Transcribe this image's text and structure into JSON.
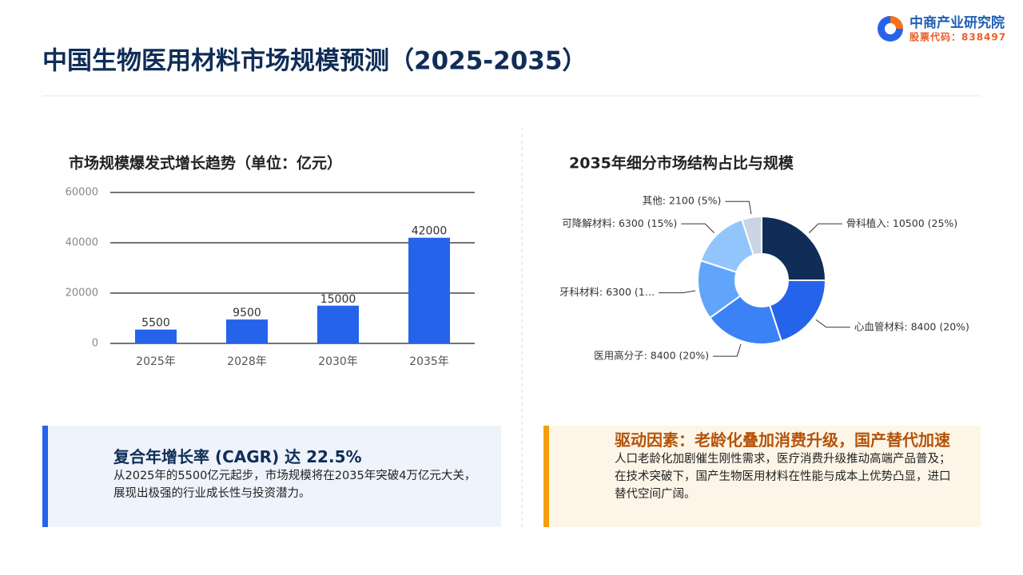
{
  "header": {
    "title": "中国生物医用材料市场规模预测（2025-2035）",
    "logo_name": "中商产业研究院",
    "logo_code": "股票代码：838497"
  },
  "chart_data": [
    {
      "type": "bar",
      "title": "市场规模爆发式增长趋势（单位：亿元）",
      "categories": [
        "2025年",
        "2028年",
        "2030年",
        "2035年"
      ],
      "values": [
        5500,
        9500,
        15000,
        42000
      ],
      "color": "#2563eb",
      "ylim": [
        0,
        60000
      ],
      "yticks": [
        0,
        20000,
        40000,
        60000
      ],
      "grid": true
    },
    {
      "type": "pie",
      "title": "2035年细分市场结构占比与规模",
      "values": [
        10500,
        8400,
        8400,
        6300,
        6300,
        2100
      ],
      "value_labels": [
        "骨科植入: 10500 (25%)",
        "心血管材料: 8400 (20%)",
        "医用高分子: 8400 (20%)",
        "牙科材料: 6300 (1…",
        "可降解材料: 6300 (15%)",
        "其他: 2100 (5%)"
      ],
      "colors": [
        "#0f2d57",
        "#2563eb",
        "#3b82f6",
        "#60a5fa",
        "#93c5fd",
        "#cbd5e1"
      ],
      "donut": true
    }
  ],
  "cards": [
    {
      "title": "复合年增长率 (CAGR) 达 22.5%",
      "text": "从2025年的5500亿元起步，市场规模将在2035年突破4万亿元大关，展现出极强的行业成长性与投资潜力。"
    },
    {
      "title": "驱动因素：老龄化叠加消费升级，国产替代加速",
      "text": "人口老龄化加剧催生刚性需求，医疗消费升级推动高端产品普及；在技术突破下，国产生物医用材料在性能与成本上优势凸显，进口替代空间广阔。"
    }
  ]
}
